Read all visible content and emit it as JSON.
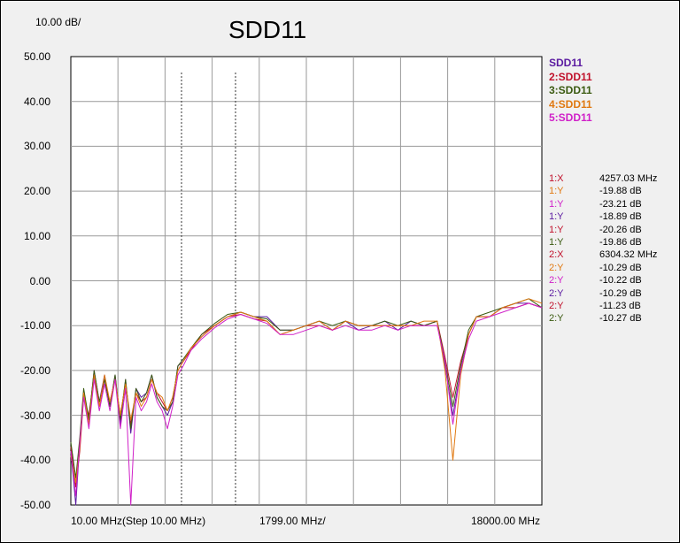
{
  "chart_data": {
    "type": "line",
    "title": "SDD11",
    "scale_label": "10.00 dB/",
    "xlabel": "",
    "ylabel": "",
    "ylim": [
      -50,
      50
    ],
    "yticks": [
      "50.00",
      "40.00",
      "30.00",
      "20.00",
      "10.00",
      "0.00",
      "-10.00",
      "-20.00",
      "-30.00",
      "-40.00",
      "-50.00"
    ],
    "xticks": {
      "start": "10.00 MHz(Step 10.00 MHz)",
      "center": "1799.00 MHz/",
      "stop": "18000.00 MHz"
    },
    "xlim": [
      10,
      18000
    ],
    "grid": true,
    "legend_position": "right",
    "marker_frequencies_mhz": [
      4257.03,
      6304.32
    ],
    "series": [
      {
        "name": "SDD11",
        "color": "#5a1aa0",
        "x": [
          10,
          200,
          350,
          500,
          700,
          900,
          1100,
          1300,
          1500,
          1700,
          1900,
          2100,
          2300,
          2500,
          2700,
          2900,
          3100,
          3300,
          3500,
          3700,
          3900,
          4100,
          4300,
          4600,
          5000,
          5500,
          6000,
          6500,
          7000,
          7500,
          8000,
          8500,
          9000,
          9500,
          10000,
          10500,
          11000,
          11500,
          12000,
          12500,
          13000,
          13500,
          14000,
          14300,
          14600,
          14900,
          15200,
          15500,
          16000,
          16500,
          17000,
          17500,
          18000
        ],
        "y": [
          -38,
          -50,
          -36,
          -25,
          -31,
          -20,
          -27,
          -21,
          -28,
          -21,
          -32,
          -22,
          -34,
          -24,
          -26,
          -25,
          -21,
          -26,
          -28,
          -30,
          -27,
          -19,
          -18,
          -15,
          -12.5,
          -10,
          -8,
          -7,
          -8,
          -8,
          -11,
          -11,
          -10,
          -9,
          -11,
          -9,
          -11,
          -10,
          -9,
          -11,
          -9,
          -10,
          -9,
          -19,
          -30,
          -20,
          -12,
          -8,
          -8,
          -6,
          -5,
          -5,
          -6
        ]
      },
      {
        "name": "2:SDD11",
        "color": "#c0102a",
        "x": [
          10,
          200,
          350,
          500,
          700,
          900,
          1100,
          1300,
          1500,
          1700,
          1900,
          2100,
          2300,
          2500,
          2700,
          2900,
          3100,
          3300,
          3500,
          3700,
          3900,
          4100,
          4300,
          4600,
          5000,
          5500,
          6000,
          6500,
          7000,
          7500,
          8000,
          8500,
          9000,
          9500,
          10000,
          10500,
          11000,
          11500,
          12000,
          12500,
          13000,
          13500,
          14000,
          14300,
          14600,
          14900,
          15200,
          15500,
          16000,
          16500,
          17000,
          17500,
          18000
        ],
        "y": [
          -37,
          -46,
          -38,
          -26,
          -30,
          -21,
          -28,
          -22,
          -27,
          -22,
          -30,
          -23,
          -32,
          -25,
          -27,
          -26,
          -22,
          -25,
          -27,
          -29,
          -26,
          -20,
          -18,
          -15.5,
          -12,
          -10,
          -8,
          -7.5,
          -8.5,
          -9,
          -12,
          -11,
          -10,
          -10,
          -11,
          -9,
          -10,
          -10,
          -10,
          -10,
          -10,
          -10,
          -9,
          -17,
          -26,
          -18,
          -12,
          -8,
          -8,
          -6,
          -6,
          -5,
          -6
        ]
      },
      {
        "name": "3:SDD11",
        "color": "#3a5a10",
        "x": [
          10,
          200,
          350,
          500,
          700,
          900,
          1100,
          1300,
          1500,
          1700,
          1900,
          2100,
          2300,
          2500,
          2700,
          2900,
          3100,
          3300,
          3500,
          3700,
          3900,
          4100,
          4300,
          4600,
          5000,
          5500,
          6000,
          6500,
          7000,
          7500,
          8000,
          8500,
          9000,
          9500,
          10000,
          10500,
          11000,
          11500,
          12000,
          12500,
          13000,
          13500,
          14000,
          14300,
          14600,
          14900,
          15200,
          15500,
          16000,
          16500,
          17000,
          17500,
          18000
        ],
        "y": [
          -36,
          -44,
          -35,
          -24,
          -31,
          -20,
          -27,
          -22,
          -28,
          -21,
          -31,
          -22,
          -33,
          -24,
          -27,
          -25,
          -21,
          -26,
          -28,
          -29,
          -27,
          -19,
          -17.5,
          -15,
          -12,
          -9.5,
          -7.5,
          -7,
          -8,
          -8.5,
          -11,
          -11,
          -10,
          -9,
          -10,
          -9,
          -10,
          -10,
          -9,
          -10,
          -9,
          -10,
          -9,
          -18,
          -28,
          -19,
          -11,
          -8,
          -7,
          -6,
          -5,
          -4,
          -6
        ]
      },
      {
        "name": "4:SDD11",
        "color": "#e07810",
        "x": [
          10,
          200,
          350,
          500,
          700,
          900,
          1100,
          1300,
          1500,
          1700,
          1900,
          2100,
          2300,
          2500,
          2700,
          2900,
          3100,
          3300,
          3500,
          3700,
          3900,
          4100,
          4300,
          4600,
          5000,
          5500,
          6000,
          6500,
          7000,
          7500,
          8000,
          8500,
          9000,
          9500,
          10000,
          10500,
          11000,
          11500,
          12000,
          12500,
          13000,
          13500,
          14000,
          14300,
          14600,
          14900,
          15200,
          15500,
          16000,
          16500,
          17000,
          17500,
          18000
        ],
        "y": [
          -39,
          -45,
          -37,
          -25,
          -32,
          -21,
          -28,
          -21,
          -27,
          -22,
          -30,
          -23,
          -31,
          -25,
          -28,
          -26,
          -22,
          -25,
          -26,
          -29,
          -26,
          -20,
          -18,
          -15,
          -12.5,
          -10,
          -8,
          -7,
          -8,
          -9,
          -12,
          -11,
          -10,
          -9,
          -11,
          -9,
          -10,
          -10,
          -10,
          -10,
          -10,
          -9,
          -9,
          -20,
          -40,
          -21,
          -12,
          -8,
          -8,
          -6,
          -5,
          -4,
          -5
        ]
      },
      {
        "name": "5:SDD11",
        "color": "#d020c8",
        "x": [
          10,
          200,
          350,
          500,
          700,
          900,
          1100,
          1300,
          1500,
          1700,
          1900,
          2100,
          2300,
          2500,
          2700,
          2900,
          3100,
          3300,
          3500,
          3700,
          3900,
          4100,
          4300,
          4600,
          5000,
          5500,
          6000,
          6500,
          7000,
          7500,
          8000,
          8500,
          9000,
          9500,
          10000,
          10500,
          11000,
          11500,
          12000,
          12500,
          13000,
          13500,
          14000,
          14300,
          14600,
          14900,
          15200,
          15500,
          16000,
          16500,
          17000,
          17500,
          18000
        ],
        "y": [
          -38,
          -48,
          -36,
          -26,
          -33,
          -22,
          -29,
          -23,
          -29,
          -22,
          -33,
          -24,
          -50,
          -26,
          -29,
          -27,
          -23,
          -27,
          -29,
          -33,
          -28,
          -21,
          -19,
          -15.5,
          -13,
          -10.5,
          -8.5,
          -7.5,
          -8.5,
          -9.5,
          -12,
          -12,
          -11,
          -10,
          -11,
          -10,
          -11,
          -11,
          -10,
          -11,
          -10,
          -10,
          -10,
          -18,
          -32,
          -20,
          -13,
          -9,
          -8,
          -7,
          -6,
          -5,
          -6
        ]
      }
    ]
  },
  "legend": [
    {
      "label": "SDD11",
      "color": "#5a1aa0"
    },
    {
      "label": "2:SDD11",
      "color": "#c0102a"
    },
    {
      "label": "3:SDD11",
      "color": "#3a5a10"
    },
    {
      "label": "4:SDD11",
      "color": "#e07810"
    },
    {
      "label": "5:SDD11",
      "color": "#d020c8"
    }
  ],
  "markers": [
    {
      "label": "1:X",
      "value": "4257.03 MHz",
      "color": "#c0102a"
    },
    {
      "label": "1:Y",
      "value": "-19.88 dB",
      "color": "#e07810"
    },
    {
      "label": "1:Y",
      "value": "-23.21 dB",
      "color": "#d020c8"
    },
    {
      "label": "1:Y",
      "value": "-18.89 dB",
      "color": "#5a1aa0"
    },
    {
      "label": "1:Y",
      "value": "-20.26 dB",
      "color": "#c0102a"
    },
    {
      "label": "1:Y",
      "value": "-19.86 dB",
      "color": "#3a5a10"
    },
    {
      "label": "2:X",
      "value": "6304.32 MHz",
      "color": "#c0102a"
    },
    {
      "label": "2:Y",
      "value": "-10.29 dB",
      "color": "#e07810"
    },
    {
      "label": "2:Y",
      "value": "-10.22 dB",
      "color": "#d020c8"
    },
    {
      "label": "2:Y",
      "value": "-10.29 dB",
      "color": "#5a1aa0"
    },
    {
      "label": "2:Y",
      "value": "-11.23 dB",
      "color": "#c0102a"
    },
    {
      "label": "2:Y",
      "value": "-10.27 dB",
      "color": "#3a5a10"
    }
  ]
}
